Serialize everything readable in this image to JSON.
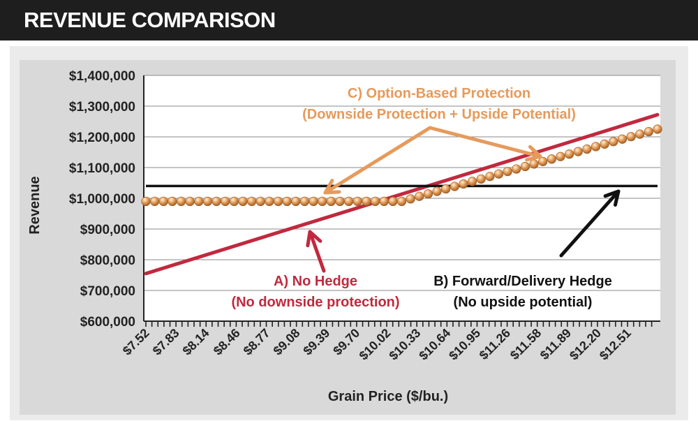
{
  "header": {
    "title": "REVENUE COMPARISON"
  },
  "colors": {
    "no_hedge": "#c1293e",
    "forward_hedge": "#111111",
    "option": "#e0924a",
    "option_arrow": "#e69a5c",
    "plot_bg": "#ffffff",
    "chart_bg": "#d9d9d9"
  },
  "chart_data": {
    "type": "line",
    "title": "",
    "xlabel": "Grain Price ($/bu.)",
    "ylabel": "Revenue",
    "ylim": [
      600000,
      1400000
    ],
    "xlim": [
      7.52,
      12.82
    ],
    "y_ticks": [
      600000,
      700000,
      800000,
      900000,
      1000000,
      1100000,
      1200000,
      1300000,
      1400000
    ],
    "y_tick_labels": [
      "$600,000",
      "$700,000",
      "$800,000",
      "$900,000",
      "$1,000,000",
      "$1,100,000",
      "$1,200,000",
      "$1,300,000",
      "$1,400,000"
    ],
    "x_ticks": [
      7.52,
      7.83,
      8.14,
      8.46,
      8.77,
      9.08,
      9.39,
      9.7,
      10.02,
      10.33,
      10.64,
      10.95,
      11.26,
      11.58,
      11.89,
      12.2,
      12.51
    ],
    "x_tick_labels": [
      "$7.52",
      "$7.83",
      "$8.14",
      "$8.46",
      "$8.77",
      "$9.08",
      "$9.39",
      "$9.70",
      "$10.02",
      "$10.33",
      "$10.64",
      "$10.95",
      "$11.26",
      "$11.58",
      "$11.89",
      "$12.20",
      "$12.51"
    ],
    "minor_ticks_per_major": 5,
    "series": [
      {
        "name": "A) No Hedge",
        "kind": "line",
        "color": "#c1293e",
        "x": [
          7.52,
          12.82
        ],
        "y": [
          755000,
          1272000
        ]
      },
      {
        "name": "B) Forward/Delivery Hedge",
        "kind": "line",
        "color": "#111111",
        "x": [
          7.52,
          12.82
        ],
        "y": [
          1040000,
          1040000
        ]
      },
      {
        "name": "C) Option-Based Protection",
        "kind": "markers",
        "color": "#e0924a",
        "floor": 990000,
        "x_start": 7.52,
        "x_end": 12.82,
        "count": 59,
        "breakeven_x": 10.17,
        "end_y": 1225000
      }
    ],
    "annotations": [
      {
        "id": "no-hedge",
        "lines": [
          "A) No Hedge",
          "(No downside protection)"
        ],
        "color": "#c1293e"
      },
      {
        "id": "forward-hedge",
        "lines": [
          "B) Forward/Delivery Hedge",
          "(No upside potential)"
        ],
        "color": "#111111"
      },
      {
        "id": "option-based",
        "lines": [
          "C) Option-Based Protection",
          "(Downside Protection + Upside Potential)"
        ],
        "color": "#e69a5c"
      }
    ]
  }
}
